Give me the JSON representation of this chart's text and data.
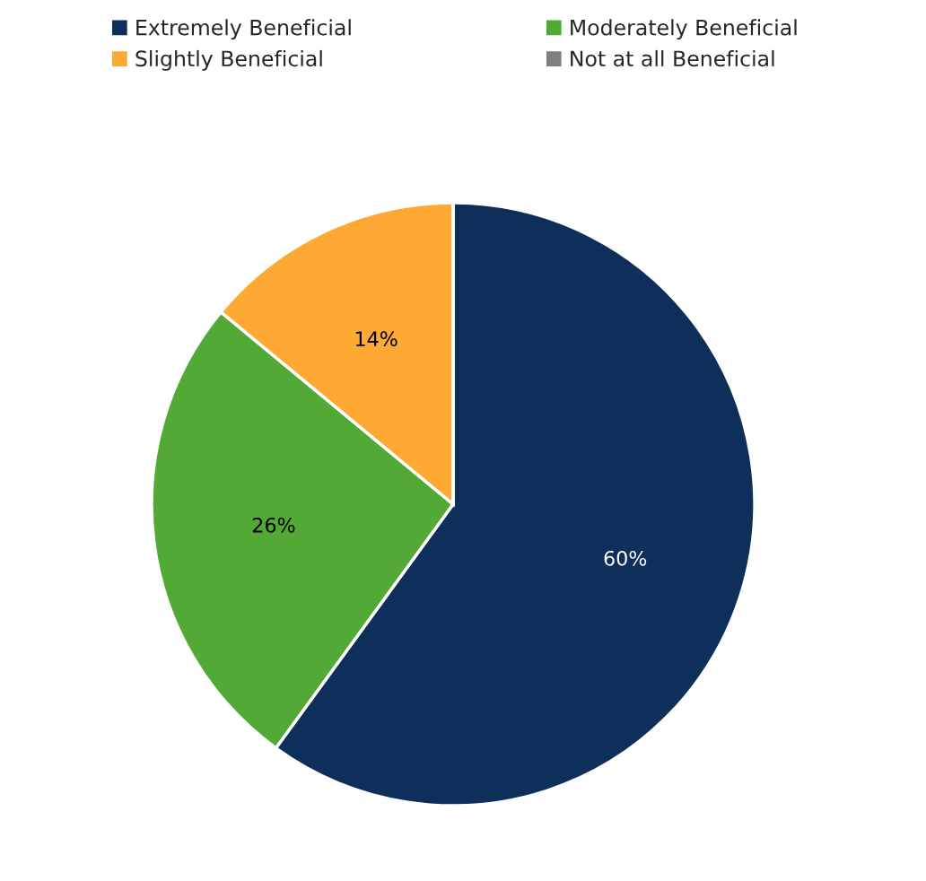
{
  "chart_data": {
    "type": "pie",
    "categories": [
      "Extremely Beneficial",
      "Moderately Beneficial",
      "Slightly Beneficial",
      "Not at all Beneficial"
    ],
    "values": [
      60,
      26,
      14,
      0
    ],
    "colors": [
      "#0d2f5a",
      "#52a935",
      "#fda933",
      "#7f7f7f"
    ],
    "value_labels": [
      "60%",
      "26%",
      "14%",
      null
    ],
    "legend": "top"
  }
}
